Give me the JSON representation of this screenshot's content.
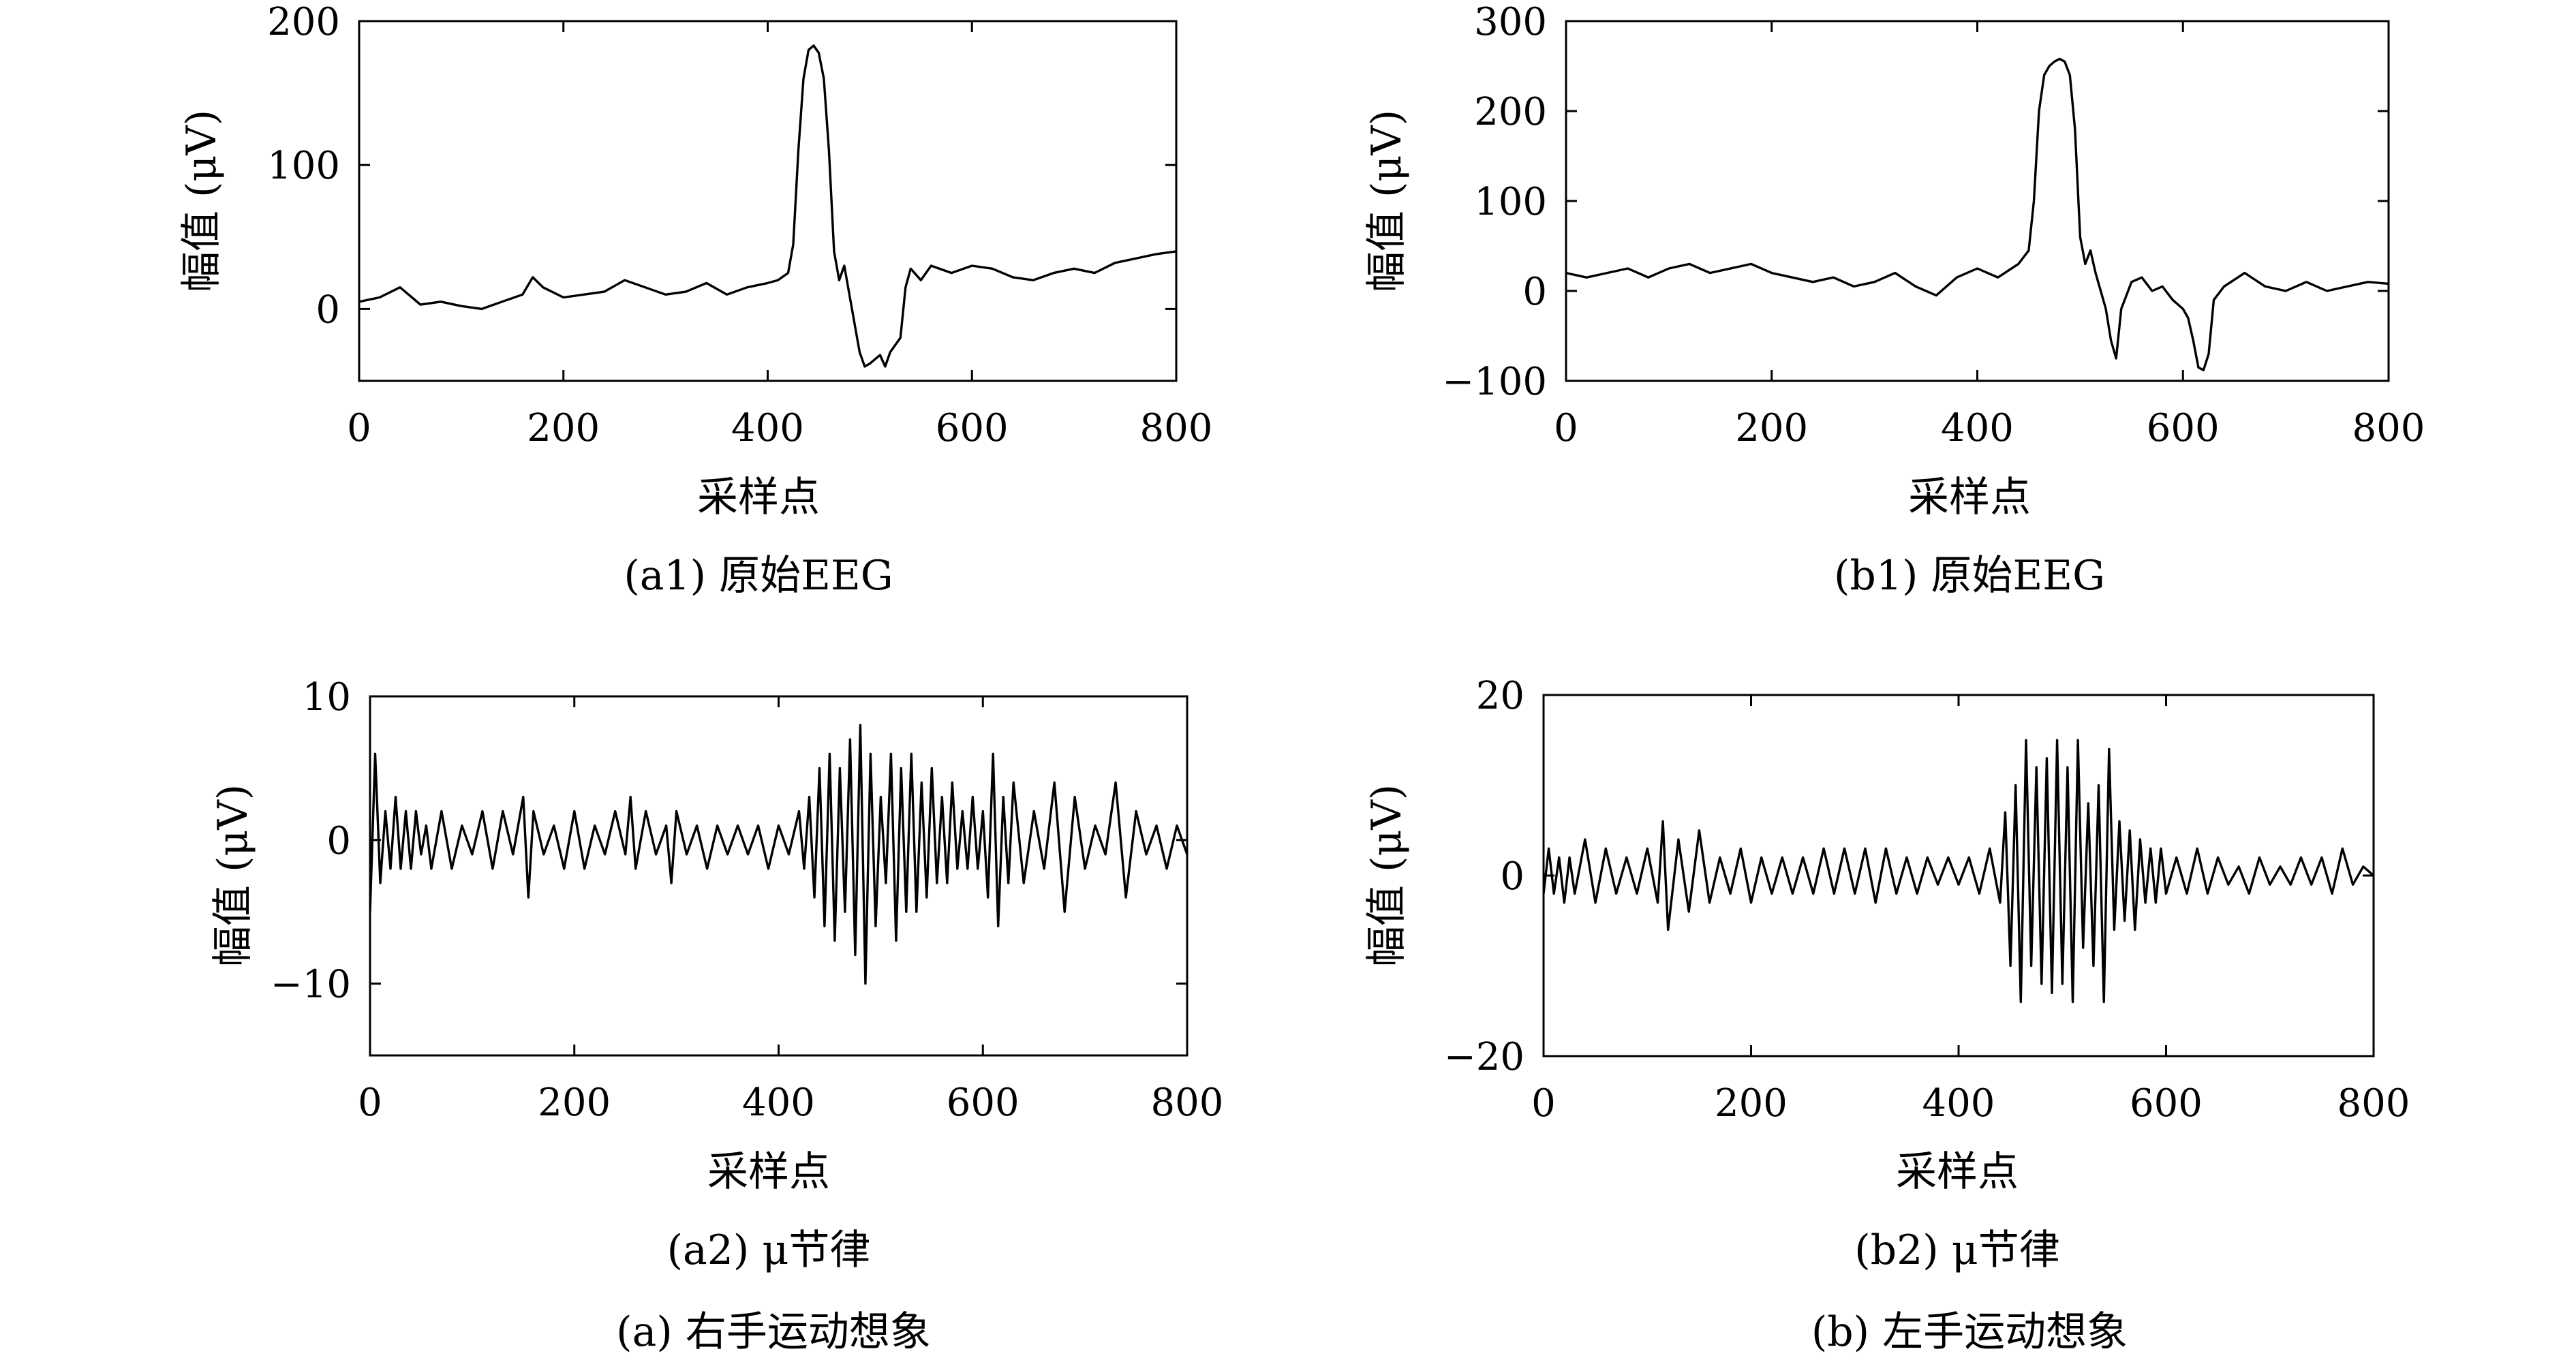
{
  "chart_data": [
    {
      "id": "a1",
      "type": "line",
      "title": "",
      "caption": "(a1) 原始EEG",
      "xlabel": "采样点",
      "ylabel": "幅值 (μV)",
      "xlim": [
        0,
        800
      ],
      "ylim": [
        -50,
        200
      ],
      "xticks": [
        0,
        200,
        400,
        600,
        800
      ],
      "yticks": [
        0,
        100,
        200
      ],
      "xtick_labels": [
        "0",
        "200",
        "400",
        "600",
        "800"
      ],
      "ytick_labels": [
        "0",
        "100",
        "200"
      ],
      "grid": false,
      "series": [
        {
          "x": [
            0,
            20,
            40,
            60,
            80,
            100,
            120,
            140,
            160,
            170,
            180,
            200,
            220,
            240,
            260,
            280,
            300,
            320,
            340,
            360,
            380,
            400,
            410,
            420,
            425,
            430,
            435,
            440,
            445,
            450,
            455,
            460,
            465,
            470,
            475,
            480,
            485,
            490,
            495,
            500,
            505,
            510,
            515,
            520,
            525,
            530,
            535,
            540,
            550,
            560,
            580,
            600,
            620,
            640,
            660,
            680,
            700,
            720,
            740,
            760,
            780,
            800
          ],
          "y": [
            5,
            8,
            15,
            3,
            5,
            2,
            0,
            5,
            10,
            22,
            15,
            8,
            10,
            12,
            20,
            15,
            10,
            12,
            18,
            10,
            15,
            18,
            20,
            25,
            45,
            110,
            160,
            180,
            183,
            178,
            160,
            110,
            40,
            20,
            30,
            10,
            -10,
            -30,
            -40,
            -38,
            -35,
            -32,
            -40,
            -30,
            -25,
            -20,
            15,
            28,
            20,
            30,
            25,
            30,
            28,
            22,
            20,
            25,
            28,
            25,
            32,
            35,
            38,
            40
          ]
        }
      ]
    },
    {
      "id": "b1",
      "type": "line",
      "title": "",
      "caption": "(b1) 原始EEG",
      "xlabel": "采样点",
      "ylabel": "幅值 (μV)",
      "xlim": [
        0,
        800
      ],
      "ylim": [
        -100,
        300
      ],
      "xticks": [
        0,
        200,
        400,
        600,
        800
      ],
      "yticks": [
        -100,
        0,
        100,
        200,
        300
      ],
      "xtick_labels": [
        "0",
        "200",
        "400",
        "600",
        "800"
      ],
      "ytick_labels": [
        "−100",
        "0",
        "100",
        "200",
        "300"
      ],
      "grid": false,
      "series": [
        {
          "x": [
            0,
            20,
            40,
            60,
            80,
            100,
            120,
            140,
            160,
            180,
            200,
            220,
            240,
            260,
            280,
            300,
            320,
            340,
            360,
            380,
            400,
            420,
            440,
            450,
            455,
            460,
            465,
            470,
            475,
            480,
            485,
            490,
            495,
            500,
            505,
            510,
            515,
            520,
            525,
            530,
            535,
            540,
            550,
            560,
            570,
            580,
            590,
            600,
            605,
            610,
            615,
            620,
            625,
            630,
            640,
            660,
            680,
            700,
            720,
            740,
            760,
            780,
            800
          ],
          "y": [
            20,
            15,
            20,
            25,
            15,
            25,
            30,
            20,
            25,
            30,
            20,
            15,
            10,
            15,
            5,
            10,
            20,
            5,
            -5,
            15,
            25,
            15,
            30,
            45,
            100,
            200,
            240,
            250,
            255,
            258,
            255,
            240,
            180,
            60,
            30,
            45,
            20,
            0,
            -20,
            -55,
            -75,
            -20,
            10,
            15,
            0,
            5,
            -10,
            -20,
            -30,
            -55,
            -85,
            -88,
            -70,
            -10,
            5,
            20,
            5,
            0,
            10,
            0,
            5,
            10,
            8
          ]
        }
      ]
    },
    {
      "id": "a2",
      "type": "line",
      "title": "",
      "caption": "(a2) μ节律",
      "xlabel": "采样点",
      "ylabel": "幅值 (μV)",
      "xlim": [
        0,
        800
      ],
      "ylim": [
        -15,
        10
      ],
      "xticks": [
        0,
        200,
        400,
        600,
        800
      ],
      "yticks": [
        -10,
        0,
        10
      ],
      "xtick_labels": [
        "0",
        "200",
        "400",
        "600",
        "800"
      ],
      "ytick_labels": [
        "−10",
        "0",
        "10"
      ],
      "grid": false,
      "series": [
        {
          "x": [
            0,
            5,
            10,
            15,
            20,
            25,
            30,
            35,
            40,
            45,
            50,
            55,
            60,
            70,
            80,
            90,
            100,
            110,
            120,
            130,
            140,
            150,
            155,
            160,
            170,
            180,
            190,
            200,
            210,
            220,
            230,
            240,
            250,
            255,
            260,
            270,
            280,
            290,
            295,
            300,
            310,
            320,
            330,
            340,
            350,
            360,
            370,
            380,
            390,
            400,
            410,
            420,
            425,
            430,
            435,
            440,
            445,
            450,
            455,
            460,
            465,
            470,
            475,
            480,
            485,
            490,
            495,
            500,
            505,
            510,
            515,
            520,
            525,
            530,
            535,
            540,
            545,
            550,
            555,
            560,
            565,
            570,
            575,
            580,
            585,
            590,
            595,
            600,
            605,
            610,
            615,
            620,
            625,
            630,
            640,
            650,
            660,
            670,
            680,
            690,
            700,
            710,
            720,
            730,
            740,
            750,
            760,
            770,
            780,
            790,
            800
          ],
          "y": [
            -5,
            6,
            -3,
            2,
            -2,
            3,
            -2,
            2,
            -2,
            2,
            -1,
            1,
            -2,
            2,
            -2,
            1,
            -1,
            2,
            -2,
            2,
            -1,
            3,
            -4,
            2,
            -1,
            1,
            -2,
            2,
            -2,
            1,
            -1,
            2,
            -1,
            3,
            -2,
            2,
            -1,
            1,
            -3,
            2,
            -1,
            1,
            -2,
            1,
            -1,
            1,
            -1,
            1,
            -2,
            1,
            -1,
            2,
            -2,
            3,
            -4,
            5,
            -6,
            6,
            -7,
            5,
            -5,
            7,
            -8,
            8,
            -10,
            6,
            -6,
            3,
            -3,
            6,
            -7,
            5,
            -5,
            6,
            -5,
            4,
            -4,
            5,
            -3,
            3,
            -3,
            4,
            -2,
            2,
            -2,
            3,
            -2,
            2,
            -4,
            6,
            -6,
            3,
            -3,
            4,
            -3,
            2,
            -2,
            4,
            -5,
            3,
            -2,
            1,
            -1,
            4,
            -4,
            2,
            -1,
            1,
            -2,
            1,
            -1
          ]
        }
      ]
    },
    {
      "id": "b2",
      "type": "line",
      "title": "",
      "caption": "(b2) μ节律",
      "xlabel": "采样点",
      "ylabel": "幅值 (μV)",
      "xlim": [
        0,
        800
      ],
      "ylim": [
        -20,
        20
      ],
      "xticks": [
        0,
        200,
        400,
        600,
        800
      ],
      "yticks": [
        -20,
        0,
        20
      ],
      "xtick_labels": [
        "0",
        "200",
        "400",
        "600",
        "800"
      ],
      "ytick_labels": [
        "−20",
        "0",
        "20"
      ],
      "grid": false,
      "series": [
        {
          "x": [
            0,
            5,
            10,
            15,
            20,
            25,
            30,
            40,
            50,
            60,
            70,
            80,
            90,
            100,
            110,
            115,
            120,
            130,
            140,
            150,
            160,
            170,
            180,
            190,
            200,
            210,
            220,
            230,
            240,
            250,
            260,
            270,
            280,
            290,
            300,
            310,
            320,
            330,
            340,
            350,
            360,
            370,
            380,
            390,
            400,
            410,
            420,
            430,
            440,
            445,
            450,
            455,
            460,
            465,
            470,
            475,
            480,
            485,
            490,
            495,
            500,
            505,
            510,
            515,
            520,
            525,
            530,
            535,
            540,
            545,
            550,
            555,
            560,
            565,
            570,
            575,
            580,
            585,
            590,
            595,
            600,
            610,
            620,
            630,
            640,
            650,
            660,
            670,
            680,
            690,
            700,
            710,
            720,
            730,
            740,
            750,
            760,
            770,
            780,
            790,
            800
          ],
          "y": [
            -2,
            3,
            -2,
            2,
            -3,
            2,
            -2,
            4,
            -3,
            3,
            -2,
            2,
            -2,
            3,
            -3,
            6,
            -6,
            4,
            -4,
            5,
            -3,
            2,
            -2,
            3,
            -3,
            2,
            -2,
            2,
            -2,
            2,
            -2,
            3,
            -2,
            3,
            -2,
            3,
            -3,
            3,
            -2,
            2,
            -2,
            2,
            -1,
            2,
            -1,
            2,
            -2,
            3,
            -3,
            7,
            -10,
            10,
            -14,
            15,
            -10,
            12,
            -12,
            13,
            -13,
            15,
            -12,
            12,
            -14,
            15,
            -8,
            8,
            -10,
            10,
            -14,
            14,
            -6,
            6,
            -5,
            5,
            -6,
            4,
            -3,
            3,
            -3,
            3,
            -2,
            2,
            -2,
            3,
            -2,
            2,
            -1,
            1,
            -2,
            2,
            -1,
            1,
            -1,
            2,
            -1,
            2,
            -2,
            3,
            -1,
            1,
            0
          ]
        }
      ]
    }
  ],
  "figure": {
    "group_captions": [
      "(a) 右手运动想象",
      "(b) 左手运动想象"
    ]
  }
}
